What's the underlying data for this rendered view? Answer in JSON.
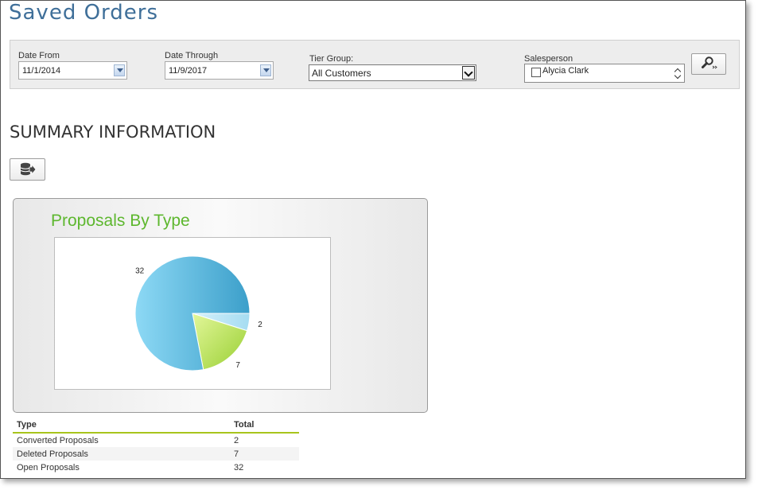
{
  "page": {
    "title": "Saved Orders"
  },
  "filters": {
    "date_from": {
      "label": "Date From",
      "value": "11/1/2014"
    },
    "date_through": {
      "label": "Date Through",
      "value": "11/9/2017"
    },
    "tier_group": {
      "label": "Tier Group:",
      "value": "All Customers"
    },
    "salesperson": {
      "label": "Salesperson",
      "options": [
        "Alycia Clark"
      ]
    }
  },
  "summary": {
    "title": "SUMMARY INFORMATION"
  },
  "chart_data": {
    "type": "pie",
    "title": "Proposals By Type",
    "categories": [
      "Converted Proposals",
      "Deleted Proposals",
      "Open Proposals"
    ],
    "values": [
      2,
      7,
      32
    ],
    "colors": [
      "#bfe6f5",
      "#b9e055",
      "#5fb8e0"
    ],
    "data_labels": [
      "2",
      "7",
      "32"
    ]
  },
  "table": {
    "headers": [
      "Type",
      "Total"
    ],
    "rows": [
      [
        "Converted Proposals",
        "2"
      ],
      [
        "Deleted Proposals",
        "7"
      ],
      [
        "Open Proposals",
        "32"
      ]
    ]
  },
  "icons": {
    "search": "search-icon",
    "export": "database-export-icon"
  }
}
